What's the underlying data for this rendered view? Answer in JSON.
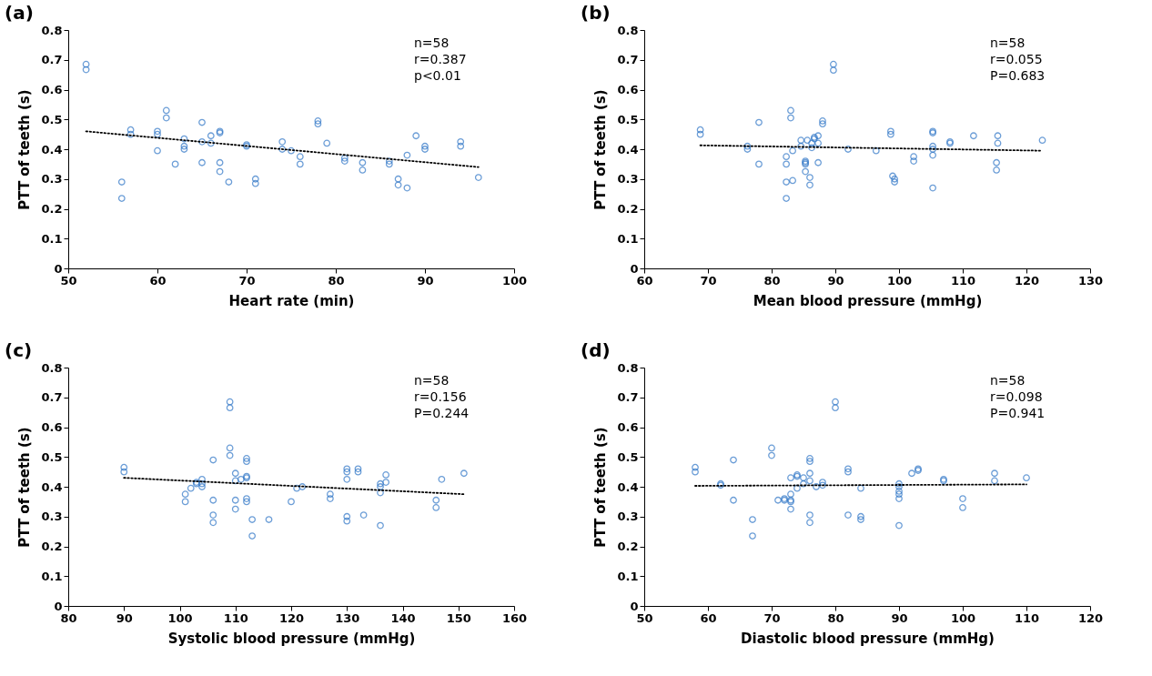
{
  "chart_data": [
    {
      "type": "scatter",
      "title": "(a)",
      "xlabel": "Heart rate (min)",
      "ylabel": "PTT of teeth (s)",
      "xlim": [
        50,
        100
      ],
      "xticks": [
        50,
        60,
        70,
        80,
        90,
        100
      ],
      "ylim": [
        0,
        0.8
      ],
      "yticks": [
        0,
        0.1,
        0.2,
        0.3,
        0.4,
        0.5,
        0.6,
        0.7,
        0.8
      ],
      "grid": false,
      "annotations": [
        "n=58",
        "r=0.387",
        "p<0.01"
      ],
      "series": [
        {
          "type": "scatter",
          "marker": "circle",
          "color": "#2e75c6",
          "x": [
            52,
            52,
            56,
            56,
            57,
            57,
            60,
            60,
            60,
            61,
            61,
            62,
            63,
            63,
            63,
            65,
            65,
            65,
            66,
            66,
            67,
            67,
            67,
            67,
            68,
            70,
            70,
            71,
            71,
            74,
            74,
            75,
            76,
            76,
            78,
            78,
            79,
            81,
            81,
            83,
            83,
            86,
            86,
            87,
            87,
            88,
            88,
            89,
            90,
            90,
            94,
            94,
            96
          ],
          "values": [
            0.685,
            0.667,
            0.29,
            0.235,
            0.465,
            0.45,
            0.46,
            0.45,
            0.395,
            0.53,
            0.505,
            0.35,
            0.435,
            0.41,
            0.4,
            0.49,
            0.425,
            0.355,
            0.445,
            0.42,
            0.46,
            0.455,
            0.355,
            0.325,
            0.29,
            0.415,
            0.41,
            0.3,
            0.285,
            0.425,
            0.4,
            0.395,
            0.375,
            0.35,
            0.495,
            0.485,
            0.42,
            0.37,
            0.36,
            0.355,
            0.33,
            0.36,
            0.35,
            0.3,
            0.28,
            0.38,
            0.27,
            0.445,
            0.41,
            0.4,
            0.425,
            0.41,
            0.305
          ]
        },
        {
          "type": "line",
          "color": "#000000",
          "line_style": "dotted",
          "x": [
            52,
            96
          ],
          "values": [
            0.46,
            0.34
          ]
        }
      ]
    },
    {
      "type": "scatter",
      "title": "(b)",
      "xlabel": "Mean blood pressure (mmHg)",
      "ylabel": "PTT of teeth (s)",
      "xlim": [
        60,
        130
      ],
      "xticks": [
        60,
        70,
        80,
        90,
        100,
        110,
        120,
        130
      ],
      "ylim": [
        0,
        0.8
      ],
      "yticks": [
        0,
        0.1,
        0.2,
        0.3,
        0.4,
        0.5,
        0.6,
        0.7,
        0.8
      ],
      "grid": false,
      "annotations": [
        "n=58",
        "r=0.055",
        "P=0.683"
      ],
      "series": [
        {
          "type": "scatter",
          "marker": "circle",
          "color": "#2e75c6",
          "x": [
            68.8,
            68.8,
            76.2,
            76.2,
            78,
            78,
            82.3,
            82.3,
            82.3,
            82.3,
            83,
            83,
            83.3,
            83.3,
            84.6,
            84.6,
            85.3,
            85.3,
            85.3,
            85.3,
            85.6,
            86,
            86,
            86.3,
            86.3,
            86.7,
            86.7,
            87.3,
            87.3,
            87.3,
            88,
            88,
            89.7,
            89.7,
            92,
            96.4,
            98.7,
            98.7,
            99,
            99.3,
            99.3,
            102.3,
            102.3,
            105.3,
            105.3,
            105.3,
            105.3,
            105.3,
            105.3,
            108,
            108,
            111.7,
            115.5,
            115.5,
            115.3,
            115.3,
            122.5
          ],
          "values": [
            0.465,
            0.45,
            0.41,
            0.4,
            0.49,
            0.35,
            0.375,
            0.35,
            0.29,
            0.235,
            0.53,
            0.505,
            0.395,
            0.295,
            0.43,
            0.41,
            0.36,
            0.355,
            0.35,
            0.325,
            0.43,
            0.305,
            0.28,
            0.42,
            0.405,
            0.435,
            0.44,
            0.445,
            0.42,
            0.355,
            0.495,
            0.485,
            0.685,
            0.665,
            0.4,
            0.395,
            0.46,
            0.45,
            0.31,
            0.3,
            0.29,
            0.375,
            0.36,
            0.46,
            0.455,
            0.41,
            0.4,
            0.38,
            0.27,
            0.425,
            0.42,
            0.445,
            0.445,
            0.42,
            0.355,
            0.33,
            0.43
          ]
        },
        {
          "type": "line",
          "color": "#000000",
          "line_style": "dotted",
          "x": [
            68.8,
            122.5
          ],
          "values": [
            0.413,
            0.395
          ]
        }
      ]
    },
    {
      "type": "scatter",
      "title": "(c)",
      "xlabel": "Systolic blood pressure (mmHg)",
      "ylabel": "PTT of teeth (s)",
      "xlim": [
        80,
        160
      ],
      "xticks": [
        80,
        90,
        100,
        110,
        120,
        130,
        140,
        150,
        160
      ],
      "ylim": [
        0,
        0.8
      ],
      "yticks": [
        0,
        0.1,
        0.2,
        0.3,
        0.4,
        0.5,
        0.6,
        0.7,
        0.8
      ],
      "grid": false,
      "annotations": [
        "n=58",
        "r=0.156",
        "P=0.244"
      ],
      "series": [
        {
          "type": "scatter",
          "marker": "circle",
          "color": "#2e75c6",
          "x": [
            90,
            90,
            101,
            101,
            102,
            103,
            103,
            104,
            104,
            104,
            106,
            106,
            106,
            106,
            109,
            109,
            109,
            109,
            110,
            110,
            110,
            110,
            111,
            112,
            112,
            112,
            112,
            112,
            112,
            113,
            113,
            116,
            120,
            121,
            122,
            127,
            127,
            130,
            130,
            130,
            130,
            130,
            132,
            132,
            133,
            136,
            136,
            136,
            136,
            137,
            137,
            146,
            146,
            147,
            151
          ],
          "values": [
            0.465,
            0.45,
            0.375,
            0.35,
            0.395,
            0.415,
            0.41,
            0.425,
            0.41,
            0.4,
            0.49,
            0.355,
            0.305,
            0.28,
            0.685,
            0.665,
            0.53,
            0.505,
            0.445,
            0.42,
            0.355,
            0.325,
            0.425,
            0.495,
            0.485,
            0.435,
            0.43,
            0.36,
            0.35,
            0.29,
            0.235,
            0.29,
            0.35,
            0.395,
            0.4,
            0.375,
            0.36,
            0.46,
            0.45,
            0.425,
            0.3,
            0.285,
            0.46,
            0.45,
            0.305,
            0.41,
            0.4,
            0.38,
            0.27,
            0.44,
            0.415,
            0.355,
            0.33,
            0.425,
            0.445
          ]
        },
        {
          "type": "line",
          "color": "#000000",
          "line_style": "dotted",
          "x": [
            90,
            151
          ],
          "values": [
            0.43,
            0.375
          ]
        }
      ]
    },
    {
      "type": "scatter",
      "title": "(d)",
      "xlabel": "Diastolic blood pressure (mmHg)",
      "ylabel": "PTT of teeth (s)",
      "xlim": [
        50,
        120
      ],
      "xticks": [
        50,
        60,
        70,
        80,
        90,
        100,
        110,
        120
      ],
      "ylim": [
        0,
        0.8
      ],
      "yticks": [
        0,
        0.1,
        0.2,
        0.3,
        0.4,
        0.5,
        0.6,
        0.7,
        0.8
      ],
      "grid": false,
      "annotations": [
        "n=58",
        "r=0.098",
        "P=0.941"
      ],
      "series": [
        {
          "type": "scatter",
          "marker": "circle",
          "color": "#2e75c6",
          "x": [
            58,
            58,
            62,
            62,
            64,
            64,
            67,
            67,
            70,
            70,
            71,
            72,
            72,
            73,
            73,
            73,
            73,
            73,
            74,
            74,
            74,
            75,
            75,
            76,
            76,
            76,
            76,
            76,
            76,
            77,
            78,
            78,
            80,
            80,
            82,
            82,
            82,
            84,
            84,
            84,
            90,
            90,
            90,
            90,
            90,
            90,
            92,
            93,
            93,
            97,
            97,
            100,
            100,
            105,
            105,
            110
          ],
          "values": [
            0.465,
            0.45,
            0.41,
            0.405,
            0.49,
            0.355,
            0.29,
            0.235,
            0.53,
            0.505,
            0.355,
            0.36,
            0.355,
            0.43,
            0.375,
            0.355,
            0.35,
            0.325,
            0.44,
            0.435,
            0.395,
            0.43,
            0.41,
            0.495,
            0.485,
            0.445,
            0.42,
            0.305,
            0.28,
            0.4,
            0.415,
            0.405,
            0.685,
            0.665,
            0.46,
            0.45,
            0.305,
            0.395,
            0.3,
            0.29,
            0.41,
            0.4,
            0.385,
            0.375,
            0.36,
            0.27,
            0.445,
            0.46,
            0.455,
            0.425,
            0.42,
            0.36,
            0.33,
            0.445,
            0.42,
            0.43
          ]
        },
        {
          "type": "line",
          "color": "#000000",
          "line_style": "dotted",
          "x": [
            58,
            110
          ],
          "values": [
            0.403,
            0.408
          ]
        }
      ]
    }
  ]
}
